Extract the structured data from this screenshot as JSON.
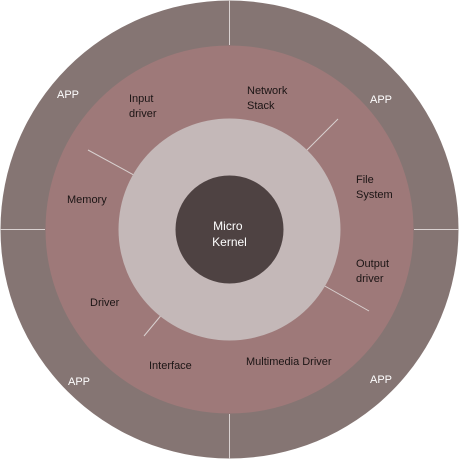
{
  "colors": {
    "outer_ring": "#857573",
    "service_ring": "#9e7979",
    "inner_ring": "#c4b8b8",
    "core": "#4e4242",
    "divider": "#d9d1d0",
    "outer_text": "#ffffff",
    "service_text": "#1c1515",
    "core_text": "#ffffff"
  },
  "outer_ring": {
    "labels": [
      "APP",
      "APP",
      "APP",
      "APP"
    ]
  },
  "services": {
    "input_driver": [
      "Input",
      "driver"
    ],
    "network_stack": [
      "Network",
      "Stack"
    ],
    "file_system": [
      "File",
      "System"
    ],
    "memory": [
      "Memory"
    ],
    "output_driver": [
      "Output",
      "driver"
    ],
    "driver": [
      "Driver"
    ],
    "interface": [
      "Interface"
    ],
    "multimedia_driver": [
      "Multimedia Driver"
    ]
  },
  "core": {
    "label": [
      "Micro",
      "Kernel"
    ]
  }
}
